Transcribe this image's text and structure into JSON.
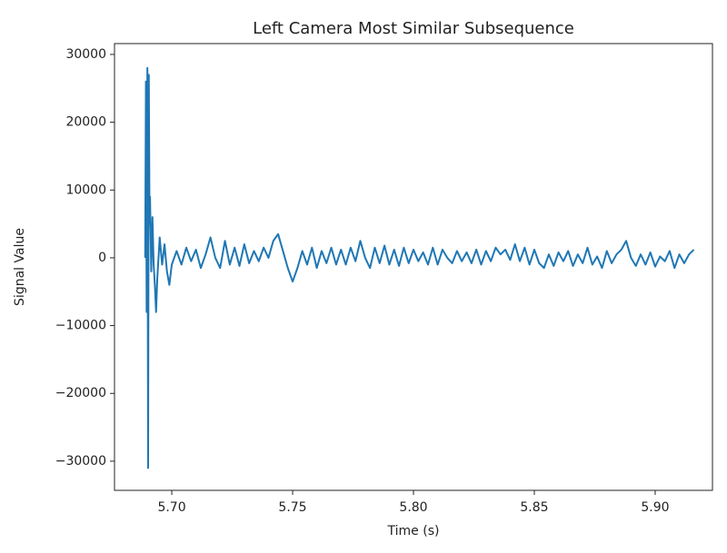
{
  "chart_data": {
    "type": "line",
    "title": "Left Camera Most Similar Subsequence",
    "x_label": "Time (s)",
    "y_label": "Signal Value",
    "x": [
      5.689,
      5.6893,
      5.6896,
      5.6899,
      5.6902,
      5.6905,
      5.6908,
      5.691,
      5.6915,
      5.692,
      5.6925,
      5.693,
      5.6935,
      5.694,
      5.695,
      5.696,
      5.697,
      5.698,
      5.699,
      5.7,
      5.702,
      5.704,
      5.706,
      5.708,
      5.71,
      5.712,
      5.714,
      5.716,
      5.718,
      5.72,
      5.722,
      5.724,
      5.726,
      5.728,
      5.73,
      5.732,
      5.734,
      5.736,
      5.738,
      5.74,
      5.742,
      5.744,
      5.746,
      5.748,
      5.75,
      5.752,
      5.754,
      5.756,
      5.758,
      5.76,
      5.762,
      5.764,
      5.766,
      5.768,
      5.77,
      5.772,
      5.774,
      5.776,
      5.778,
      5.78,
      5.782,
      5.784,
      5.786,
      5.788,
      5.79,
      5.792,
      5.794,
      5.796,
      5.798,
      5.8,
      5.802,
      5.804,
      5.806,
      5.808,
      5.81,
      5.812,
      5.814,
      5.816,
      5.818,
      5.82,
      5.822,
      5.824,
      5.826,
      5.828,
      5.83,
      5.832,
      5.834,
      5.836,
      5.838,
      5.84,
      5.842,
      5.844,
      5.846,
      5.848,
      5.85,
      5.852,
      5.854,
      5.856,
      5.858,
      5.86,
      5.862,
      5.864,
      5.866,
      5.868,
      5.87,
      5.872,
      5.874,
      5.876,
      5.878,
      5.88,
      5.882,
      5.884,
      5.886,
      5.888,
      5.89,
      5.892,
      5.894,
      5.896,
      5.898,
      5.9,
      5.902,
      5.904,
      5.906,
      5.908,
      5.91,
      5.912,
      5.914,
      5.916
    ],
    "series": [
      {
        "color": "#1f77b4",
        "values": [
          0,
          26000,
          -8000,
          28000,
          -31000,
          27000,
          5000,
          9000,
          -2000,
          6000,
          -1000,
          -4000,
          -8000,
          -3000,
          3000,
          -1000,
          2000,
          -2000,
          -4000,
          -1000,
          1000,
          -1000,
          1500,
          -500,
          1200,
          -1500,
          500,
          3000,
          0,
          -1500,
          2500,
          -1000,
          1500,
          -1200,
          2000,
          -800,
          1000,
          -500,
          1500,
          0,
          2500,
          3500,
          1000,
          -1500,
          -3500,
          -1500,
          1000,
          -1000,
          1500,
          -1500,
          1000,
          -800,
          1500,
          -1000,
          1200,
          -1000,
          1500,
          -500,
          2500,
          0,
          -1500,
          1500,
          -800,
          1800,
          -1000,
          1200,
          -1200,
          1500,
          -800,
          1200,
          -500,
          800,
          -1000,
          1500,
          -1000,
          1200,
          0,
          -800,
          1000,
          -500,
          800,
          -800,
          1200,
          -1000,
          1000,
          -500,
          1500,
          500,
          1200,
          -300,
          2000,
          -500,
          1500,
          -1000,
          1200,
          -800,
          -1500,
          500,
          -1200,
          800,
          -500,
          1000,
          -1200,
          500,
          -800,
          1500,
          -1000,
          200,
          -1500,
          1000,
          -800,
          500,
          1200,
          2500,
          0,
          -1200,
          500,
          -1000,
          800,
          -1300,
          200,
          -500,
          1000,
          -1500,
          500,
          -800,
          500,
          1200
        ]
      }
    ],
    "xlim": [
      5.6763,
      5.9237
    ],
    "xticks": [
      {
        "value": 5.7,
        "label": "5.70"
      },
      {
        "value": 5.75,
        "label": "5.75"
      },
      {
        "value": 5.8,
        "label": "5.80"
      },
      {
        "value": 5.85,
        "label": "5.85"
      },
      {
        "value": 5.9,
        "label": "5.90"
      }
    ],
    "ylim": [
      -34300,
      31600
    ],
    "yticks": [
      {
        "value": -30000,
        "label": "−30000"
      },
      {
        "value": -20000,
        "label": "−20000"
      },
      {
        "value": -10000,
        "label": "−10000"
      },
      0,
      10000,
      20000,
      30000
    ]
  }
}
